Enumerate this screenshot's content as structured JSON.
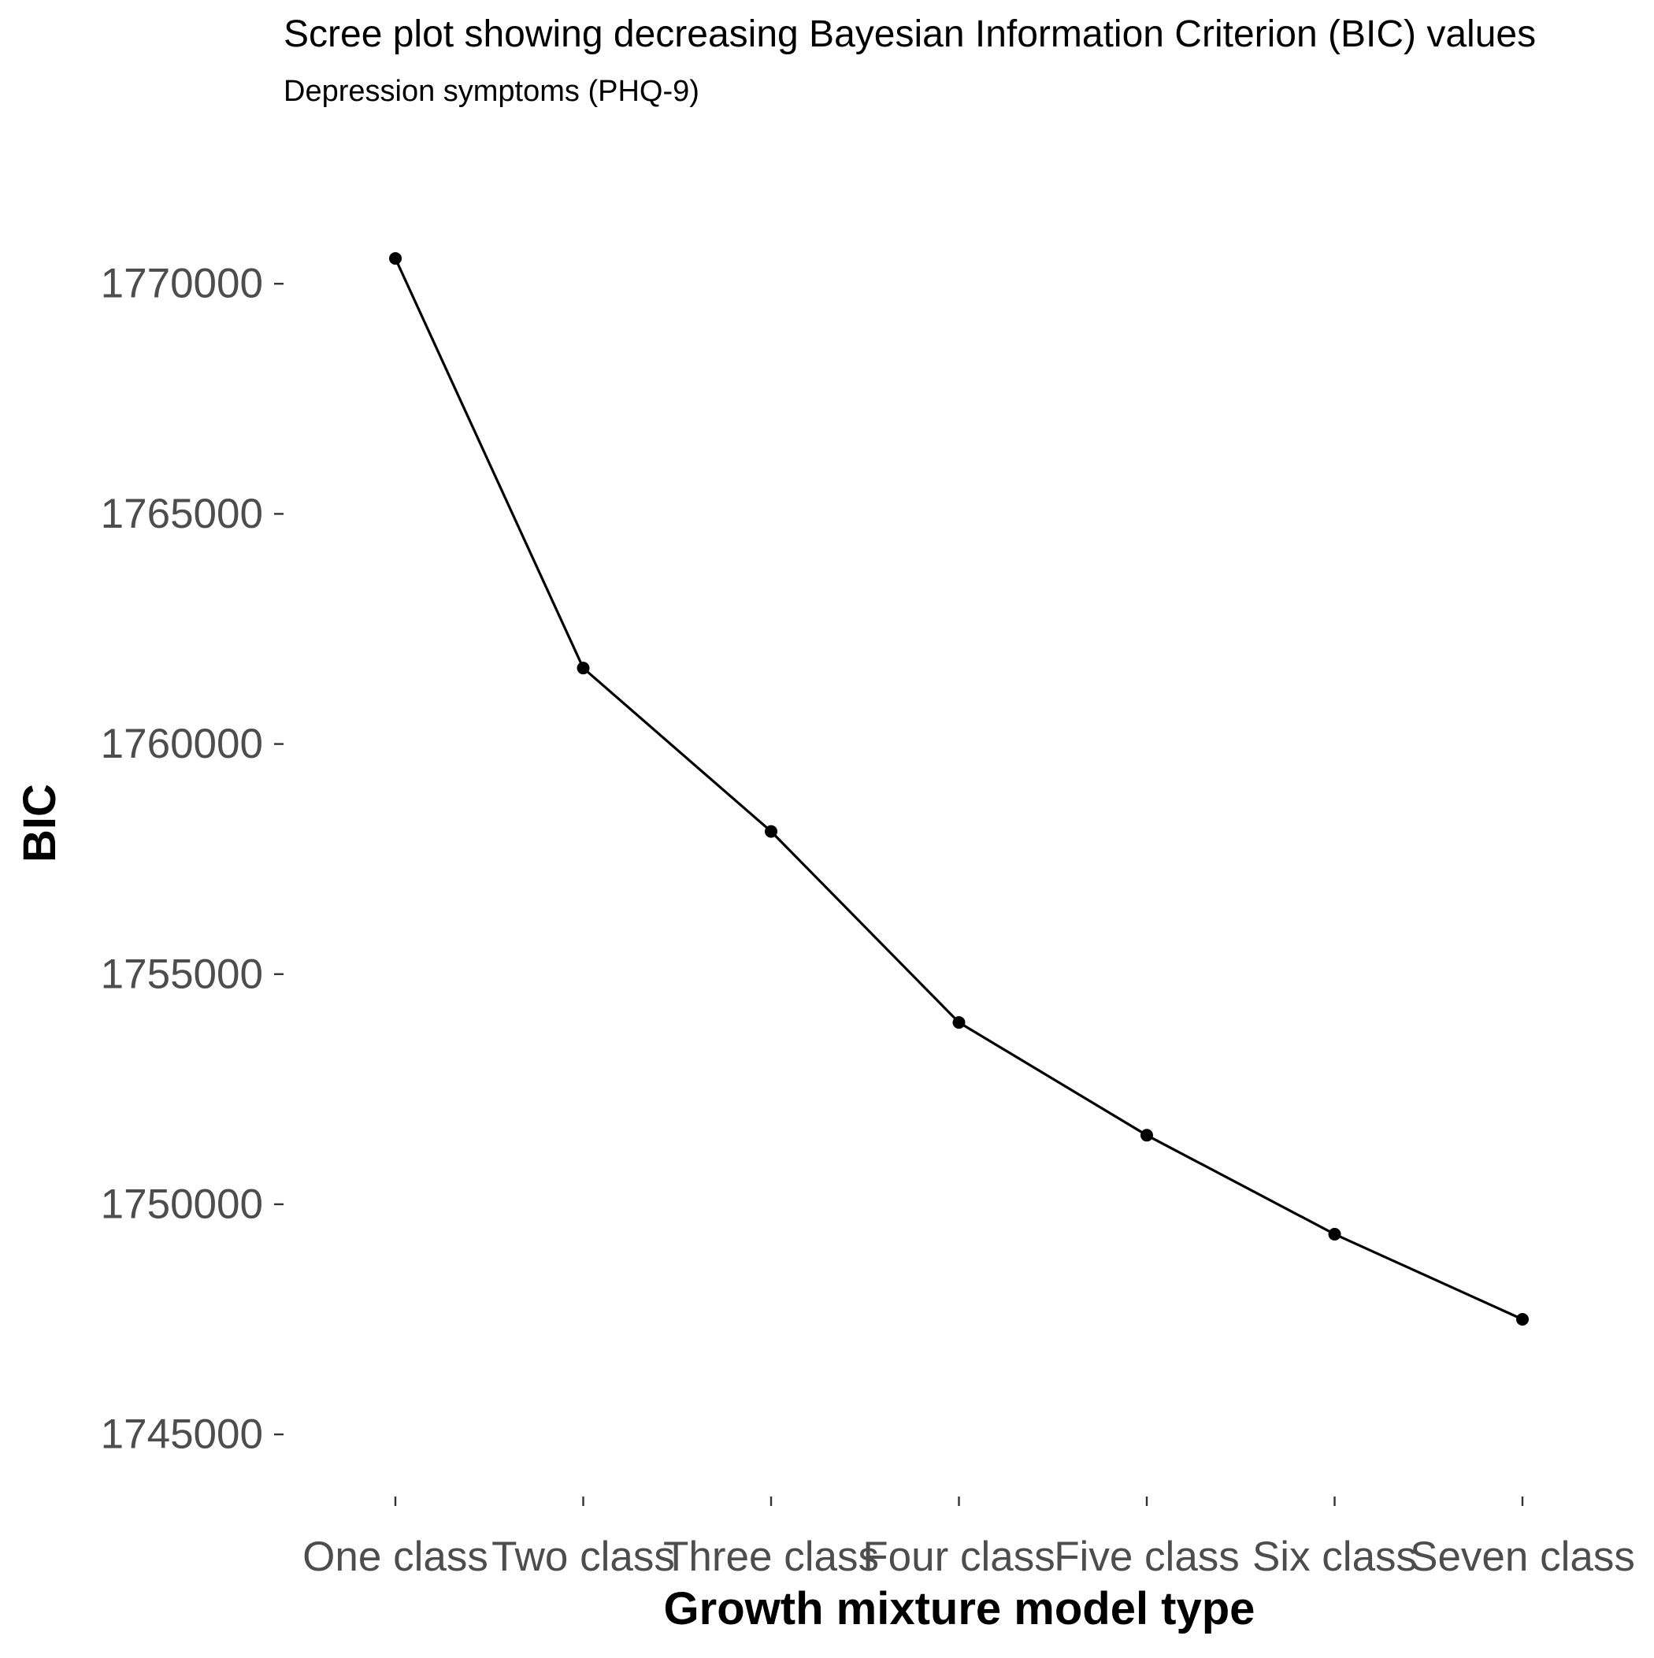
{
  "chart_data": {
    "type": "line",
    "title": "Scree plot showing decreasing Bayesian Information Criterion (BIC) values",
    "subtitle": "Depression symptoms (PHQ-9)",
    "xlabel": "Growth mixture model type",
    "ylabel": "BIC",
    "categories": [
      "One class",
      "Two class",
      "Three class",
      "Four class",
      "Five class",
      "Six class",
      "Seven class"
    ],
    "series": [
      {
        "values": [
          1770550,
          1761650,
          1758100,
          1753950,
          1751500,
          1749350,
          1747500
        ],
        "color": "#000000"
      }
    ],
    "y_ticks": [
      1745000,
      1750000,
      1755000,
      1760000,
      1765000,
      1770000
    ],
    "ylim": [
      1743650,
      1772400
    ],
    "grid": false,
    "legend": "none"
  }
}
